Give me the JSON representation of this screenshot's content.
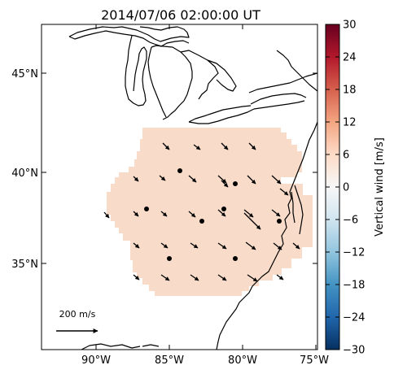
{
  "title": "2014/07/06 02:00:00 UT",
  "map": {
    "lat_ticks": [
      "45°N",
      "40°N",
      "35°N"
    ],
    "lon_ticks": [
      "90°W",
      "85°W",
      "80°W",
      "75°W"
    ],
    "field_color": "#f8dcc9",
    "coast_color": "#000000"
  },
  "scale_label": "200 m/s",
  "colorbar": {
    "label": "Vertical wind [m/s]",
    "ticks": [
      "30",
      "24",
      "18",
      "12",
      "6",
      "0",
      "−6",
      "−12",
      "−18",
      "−24",
      "−30"
    ],
    "range": [
      -30,
      30
    ],
    "colormap": [
      "#053061",
      "#2166ac",
      "#4393c3",
      "#92c5de",
      "#d1e5f0",
      "#f7f7f7",
      "#fddbc7",
      "#f4a582",
      "#d6604d",
      "#b2182b",
      "#67001f"
    ]
  }
}
